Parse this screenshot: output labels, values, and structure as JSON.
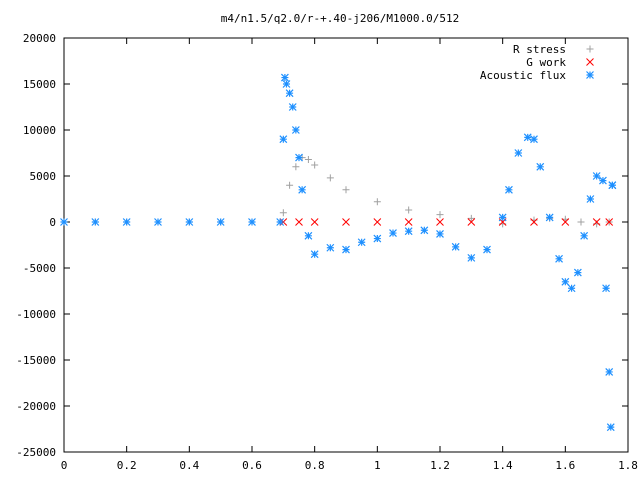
{
  "chart_data": {
    "type": "scatter",
    "title": "m4/n1.5/q2.0/r-+.40-j206/M1000.0/512",
    "xlabel": "",
    "ylabel": "",
    "xlim": [
      0,
      1.8
    ],
    "ylim": [
      -25000,
      20000
    ],
    "x_ticks": [
      "0",
      "0.2",
      "0.4",
      "0.6",
      "0.8",
      "1",
      "1.2",
      "1.4",
      "1.6",
      "1.8"
    ],
    "y_ticks": [
      "20000",
      "15000",
      "10000",
      "5000",
      "0",
      "-5000",
      "-10000",
      "-15000",
      "-20000",
      "-25000"
    ],
    "grid": false,
    "legend_position": "top-right",
    "series": [
      {
        "name": "R stress",
        "marker": "plus",
        "color": "#a0a0a0",
        "x": [
          0.0,
          0.1,
          0.2,
          0.3,
          0.4,
          0.5,
          0.6,
          0.69,
          0.7,
          0.72,
          0.74,
          0.76,
          0.78,
          0.8,
          0.85,
          0.9,
          1.0,
          1.1,
          1.2,
          1.3,
          1.4,
          1.5,
          1.55,
          1.6,
          1.65,
          1.7,
          1.74
        ],
        "y": [
          0,
          0,
          0,
          0,
          0,
          0,
          0,
          0,
          1000,
          4000,
          6000,
          7000,
          6800,
          6200,
          4800,
          3500,
          2200,
          1300,
          800,
          400,
          -200,
          200,
          400,
          300,
          0,
          -200,
          0
        ]
      },
      {
        "name": "G work",
        "marker": "cross",
        "color": "#ff0000",
        "x": [
          0.7,
          0.75,
          0.8,
          0.9,
          1.0,
          1.1,
          1.2,
          1.3,
          1.4,
          1.5,
          1.6,
          1.7,
          1.74
        ],
        "y": [
          0,
          0,
          0,
          0,
          0,
          0,
          0,
          0,
          0,
          0,
          0,
          0,
          0
        ]
      },
      {
        "name": "Acoustic flux",
        "marker": "star",
        "color": "#1e90ff",
        "x": [
          0.0,
          0.1,
          0.2,
          0.3,
          0.4,
          0.5,
          0.6,
          0.69,
          0.7,
          0.705,
          0.71,
          0.72,
          0.73,
          0.74,
          0.75,
          0.76,
          0.78,
          0.8,
          0.85,
          0.9,
          0.95,
          1.0,
          1.05,
          1.1,
          1.15,
          1.2,
          1.25,
          1.3,
          1.35,
          1.4,
          1.42,
          1.45,
          1.48,
          1.5,
          1.52,
          1.55,
          1.58,
          1.6,
          1.62,
          1.64,
          1.66,
          1.68,
          1.7,
          1.72,
          1.73,
          1.74,
          1.745,
          1.75,
          1.75
        ],
        "y": [
          0,
          0,
          0,
          0,
          0,
          0,
          0,
          0,
          9000,
          15700,
          15000,
          14000,
          12500,
          10000,
          7000,
          3500,
          -1500,
          -3500,
          -2800,
          -3000,
          -2200,
          -1800,
          -1200,
          -1000,
          -900,
          -1300,
          -2700,
          -3900,
          -3000,
          500,
          3500,
          7500,
          9200,
          9000,
          6000,
          500,
          -4000,
          -6500,
          -7200,
          -5500,
          -1500,
          2500,
          5000,
          4500,
          -7200,
          -16300,
          -22300,
          4000,
          4000
        ]
      }
    ]
  }
}
